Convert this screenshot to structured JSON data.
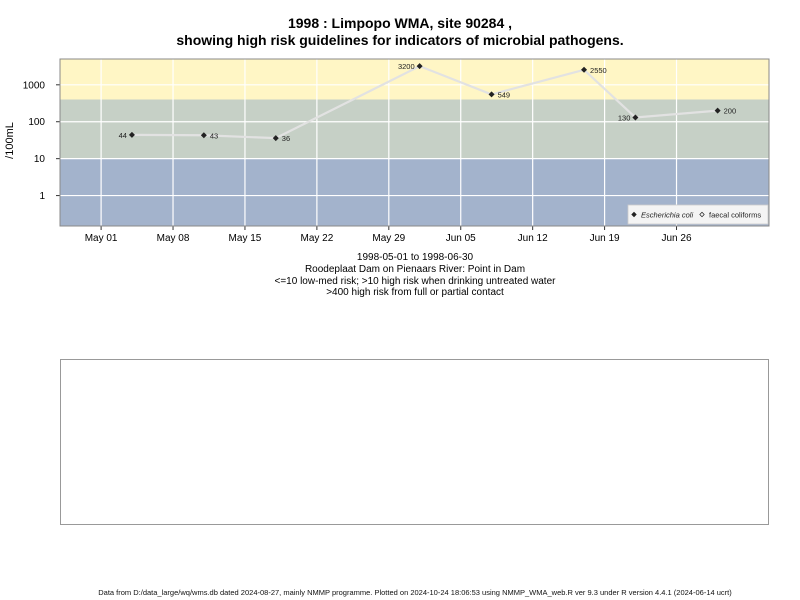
{
  "title": {
    "line1": "1998 : Limpopo WMA, site 90284 ,",
    "line2": "showing high risk guidelines for indicators of microbial pathogens."
  },
  "subtitle": {
    "line1": "1998-05-01 to 1998-06-30",
    "line2": "Roodeplaat Dam on Pienaars River: Point in Dam",
    "line3": "<=10 low-med risk; >10 high risk when drinking untreated water",
    "line4": ">400 high risk from full or partial contact"
  },
  "footer": "Data from D:/data_large/wq/wms.db dated 2024-08-27, mainly NMMP programme. Plotted on 2024-10-24 18:06:53 using NMMP_WMA_web.R ver 9.3 under R version 4.4.1 (2024-06-14 ucrt)",
  "colors": {
    "band_low": "#a3b3cc",
    "band_mid": "#c6d0c6",
    "band_high": "#fff6c5",
    "grid": "#ffffff",
    "line": "#e2e2e2",
    "point": "#222222"
  },
  "chart_data": {
    "type": "line",
    "xlabel": "",
    "ylabel": "/100mL",
    "y_scale": "log",
    "x_range": [
      "1998-04-27",
      "1998-07-05"
    ],
    "y_range": [
      0.15,
      5000
    ],
    "x_ticks": [
      {
        "date": "1998-05-01",
        "label": "May 01"
      },
      {
        "date": "1998-05-08",
        "label": "May 08"
      },
      {
        "date": "1998-05-15",
        "label": "May 15"
      },
      {
        "date": "1998-05-22",
        "label": "May 22"
      },
      {
        "date": "1998-05-29",
        "label": "May 29"
      },
      {
        "date": "1998-06-05",
        "label": "Jun 05"
      },
      {
        "date": "1998-06-12",
        "label": "Jun 12"
      },
      {
        "date": "1998-06-19",
        "label": "Jun 19"
      },
      {
        "date": "1998-06-26",
        "label": "Jun 26"
      }
    ],
    "y_ticks": [
      {
        "value": 1,
        "label": "1"
      },
      {
        "value": 10,
        "label": "10"
      },
      {
        "value": 100,
        "label": "100"
      },
      {
        "value": 1000,
        "label": "1000"
      }
    ],
    "bands": [
      {
        "from": 0.15,
        "to": 10,
        "color_key": "band_low"
      },
      {
        "from": 10,
        "to": 400,
        "color_key": "band_mid"
      },
      {
        "from": 400,
        "to": 5000,
        "color_key": "band_high"
      }
    ],
    "grid": true,
    "legend_position": "bottom-right",
    "legend": [
      {
        "label": "Escherichia coli",
        "marker": "diamond-filled",
        "italic": true
      },
      {
        "label": "faecal coliforms",
        "marker": "diamond-open",
        "italic": false
      }
    ],
    "series": [
      {
        "name": "Escherichia coli",
        "points": [
          {
            "x": "1998-05-04",
            "y": 44,
            "label": "44",
            "label_side": "left"
          },
          {
            "x": "1998-05-11",
            "y": 43,
            "label": "43",
            "label_side": "right"
          },
          {
            "x": "1998-05-18",
            "y": 36,
            "label": "36",
            "label_side": "right"
          },
          {
            "x": "1998-06-01",
            "y": 3200,
            "label": "3200",
            "label_side": "left"
          },
          {
            "x": "1998-06-08",
            "y": 549,
            "label": "549",
            "label_side": "right"
          },
          {
            "x": "1998-06-17",
            "y": 2550,
            "label": "2550",
            "label_side": "right"
          },
          {
            "x": "1998-06-22",
            "y": 130,
            "label": "130",
            "label_side": "left"
          },
          {
            "x": "1998-06-30",
            "y": 200,
            "label": "200",
            "label_side": "right"
          }
        ]
      }
    ]
  }
}
